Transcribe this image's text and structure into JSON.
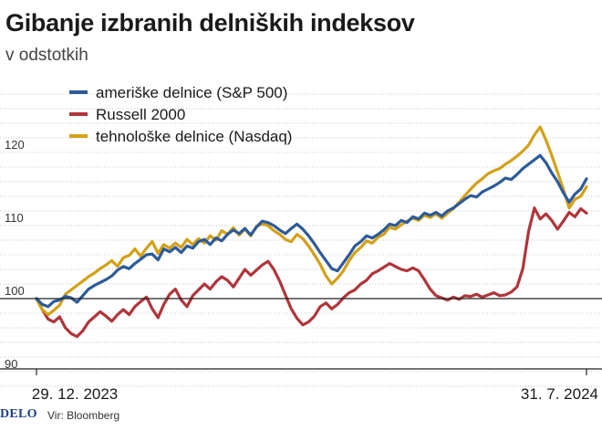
{
  "title": "Gibanje izbranih delniških indeksov",
  "subtitle": "v odstotkih",
  "footer": {
    "logo": "DELO",
    "source": "Vir: Bloomberg"
  },
  "colors": {
    "sp500": "#2d5b9a",
    "russell": "#b0353a",
    "nasdaq": "#d4a017",
    "baseline": "#222222",
    "grid": "#c8c8c8"
  },
  "chart_data": {
    "type": "line",
    "x_labels": [
      "29. 12. 2023",
      "31. 7. 2024"
    ],
    "y_ticks": [
      90,
      100,
      110,
      120
    ],
    "ylim": [
      88,
      130
    ],
    "baseline": 100,
    "grid": "horizontal dotted",
    "legend_position": "top-left",
    "series": [
      {
        "name": "ameriške delnice (S&P 500)",
        "color": "#2d5b9a",
        "values": [
          100,
          99.2,
          98.9,
          99.6,
          99.8,
          100.3,
          100.1,
          99.5,
          100.4,
          101.3,
          101.8,
          102.2,
          102.6,
          103.1,
          103.9,
          104.4,
          104.1,
          104.8,
          105.4,
          106.0,
          106.1,
          105.3,
          106.8,
          106.4,
          107.0,
          106.3,
          107.2,
          106.9,
          107.8,
          108.1,
          107.4,
          108.3,
          107.9,
          108.8,
          109.4,
          108.9,
          109.6,
          108.7,
          109.8,
          110.6,
          110.4,
          110.0,
          109.4,
          108.9,
          109.6,
          110.2,
          109.5,
          108.6,
          107.5,
          106.3,
          105.2,
          104.1,
          103.8,
          104.9,
          106.0,
          107.2,
          107.8,
          108.6,
          108.3,
          108.8,
          109.4,
          110.2,
          110.0,
          110.7,
          110.4,
          111.2,
          110.9,
          111.7,
          111.4,
          111.8,
          111.3,
          112.0,
          112.4,
          113.0,
          113.6,
          114.1,
          113.9,
          114.6,
          115.0,
          115.4,
          115.9,
          116.5,
          116.3,
          117.0,
          117.8,
          118.4,
          119.0,
          119.6,
          118.6,
          117.2,
          116.0,
          114.5,
          113.2,
          114.3,
          115.0,
          116.4
        ]
      },
      {
        "name": "Russell 2000",
        "color": "#b0353a",
        "values": [
          100,
          98.5,
          97.2,
          96.8,
          97.5,
          96.0,
          95.2,
          94.8,
          95.6,
          96.8,
          97.5,
          98.2,
          97.6,
          96.9,
          97.8,
          98.5,
          97.8,
          98.9,
          99.6,
          100.2,
          98.6,
          97.4,
          99.2,
          100.6,
          101.3,
          99.8,
          98.9,
          100.4,
          101.2,
          102.0,
          101.3,
          102.3,
          103.0,
          102.5,
          101.6,
          102.8,
          104.0,
          103.2,
          103.9,
          104.6,
          105.1,
          104.0,
          102.4,
          100.5,
          98.6,
          97.3,
          96.4,
          96.8,
          97.6,
          98.9,
          99.4,
          98.6,
          99.2,
          100.1,
          100.8,
          101.2,
          102.0,
          102.5,
          103.4,
          103.8,
          104.3,
          104.8,
          104.4,
          104.0,
          103.8,
          104.2,
          103.8,
          102.6,
          101.3,
          100.4,
          100.1,
          99.8,
          100.2,
          99.9,
          100.4,
          100.3,
          100.6,
          100.2,
          100.5,
          100.8,
          100.4,
          100.5,
          100.9,
          101.6,
          104.1,
          109.2,
          112.4,
          110.9,
          111.6,
          110.7,
          109.5,
          110.6,
          111.8,
          111.2,
          112.3,
          111.7
        ]
      },
      {
        "name": "tehnološke delnice (Nasdaq)",
        "color": "#d4a017",
        "values": [
          100,
          98.5,
          97.8,
          98.4,
          99.1,
          100.6,
          101.2,
          101.8,
          102.4,
          103.0,
          103.5,
          104.1,
          104.6,
          105.2,
          104.4,
          105.6,
          105.9,
          106.8,
          105.8,
          106.9,
          107.8,
          106.2,
          107.4,
          106.9,
          107.6,
          107.0,
          108.1,
          107.4,
          108.2,
          107.6,
          108.6,
          108.0,
          109.3,
          108.8,
          109.7,
          108.7,
          109.5,
          108.6,
          109.9,
          110.2,
          110.0,
          109.3,
          108.8,
          108.1,
          107.8,
          108.8,
          108.2,
          107.2,
          106.0,
          104.7,
          103.1,
          102.0,
          102.8,
          103.8,
          105.2,
          106.3,
          107.0,
          107.9,
          107.6,
          108.4,
          108.8,
          109.8,
          109.5,
          110.1,
          110.6,
          111.0,
          110.7,
          111.4,
          111.1,
          111.6,
          111.0,
          111.7,
          112.3,
          113.2,
          114.1,
          115.0,
          115.8,
          116.4,
          117.1,
          117.5,
          117.8,
          118.4,
          118.9,
          119.5,
          120.2,
          121.0,
          122.4,
          123.5,
          121.7,
          119.6,
          117.3,
          115.0,
          112.4,
          113.6,
          114.0,
          115.3
        ]
      }
    ]
  }
}
